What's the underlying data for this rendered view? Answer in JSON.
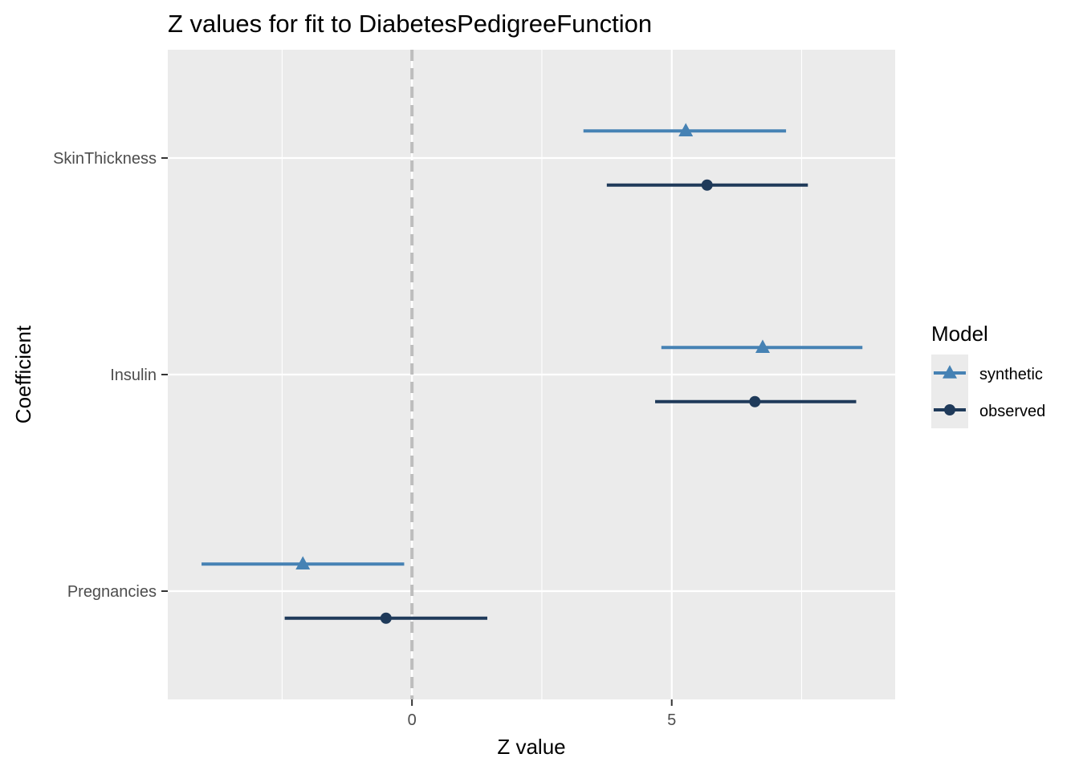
{
  "chart_data": {
    "type": "scatter",
    "subtype": "coefficient-plot",
    "title": "Z values for fit to DiabetesPedigreeFunction",
    "xlabel": "Z value",
    "ylabel": "Coefficient",
    "xlim": [
      -4.7,
      9.3
    ],
    "x_ticks": [
      0,
      5
    ],
    "x_tick_labels": [
      "0",
      "5"
    ],
    "categories": [
      "SkinThickness",
      "Insulin",
      "Pregnancies"
    ],
    "reference_line": {
      "x": 0,
      "style": "dashed",
      "color": "#bdbdbd"
    },
    "grid": true,
    "panel_background": "#ebebeb",
    "legend": {
      "title": "Model",
      "position": "right",
      "entries": [
        {
          "label": "synthetic",
          "color": "#4682b4",
          "shape": "triangle"
        },
        {
          "label": "observed",
          "color": "#1f3a5a",
          "shape": "circle"
        }
      ]
    },
    "series": [
      {
        "name": "synthetic",
        "color": "#4682b4",
        "shape": "triangle",
        "points": [
          {
            "category": "SkinThickness",
            "estimate": 5.27,
            "lower": 3.3,
            "upper": 7.2
          },
          {
            "category": "Insulin",
            "estimate": 6.75,
            "lower": 4.8,
            "upper": 8.67
          },
          {
            "category": "Pregnancies",
            "estimate": -2.1,
            "lower": -4.05,
            "upper": -0.15
          }
        ]
      },
      {
        "name": "observed",
        "color": "#1f3a5a",
        "shape": "circle",
        "points": [
          {
            "category": "SkinThickness",
            "estimate": 5.68,
            "lower": 3.75,
            "upper": 7.62
          },
          {
            "category": "Insulin",
            "estimate": 6.6,
            "lower": 4.68,
            "upper": 8.55
          },
          {
            "category": "Pregnancies",
            "estimate": -0.5,
            "lower": -2.45,
            "upper": 1.45
          }
        ]
      }
    ]
  }
}
